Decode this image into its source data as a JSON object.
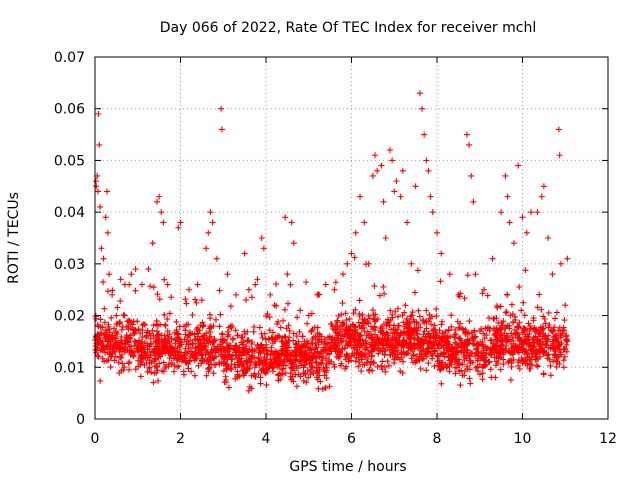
{
  "chart_data": {
    "type": "scatter",
    "title": "Day 066 of 2022, Rate Of TEC Index for receiver mchl",
    "xlabel": "GPS time / hours",
    "ylabel": "ROTI / TECUs",
    "xlim": [
      0,
      12
    ],
    "ylim": [
      0,
      0.07
    ],
    "xticks": [
      0,
      2,
      4,
      6,
      8,
      10,
      12
    ],
    "xtick_labels": [
      "0",
      "2",
      "4",
      "6",
      "8",
      "10",
      "12"
    ],
    "yticks": [
      0,
      0.01,
      0.02,
      0.03,
      0.04,
      0.05,
      0.06,
      0.07
    ],
    "ytick_labels": [
      "0",
      "0.01",
      "0.02",
      "0.03",
      "0.04",
      "0.05",
      "0.06",
      "0.07"
    ],
    "grid": true,
    "marker": "+",
    "color": "#ff0000",
    "series": [
      {
        "name": "ROTI",
        "points": [
          [
            0.02,
            0.046
          ],
          [
            0.03,
            0.045
          ],
          [
            0.05,
            0.047
          ],
          [
            0.07,
            0.044
          ],
          [
            0.08,
            0.059
          ],
          [
            0.1,
            0.053
          ],
          [
            0.12,
            0.041
          ],
          [
            0.15,
            0.033
          ],
          [
            0.2,
            0.031
          ],
          [
            0.25,
            0.039
          ],
          [
            0.28,
            0.044
          ],
          [
            0.3,
            0.036
          ],
          [
            0.33,
            0.028
          ],
          [
            0.4,
            0.024
          ],
          [
            0.5,
            0.02
          ],
          [
            0.6,
            0.027
          ],
          [
            0.7,
            0.026
          ],
          [
            0.8,
            0.026
          ],
          [
            0.85,
            0.028
          ],
          [
            0.95,
            0.029
          ],
          [
            1.1,
            0.026
          ],
          [
            1.25,
            0.029
          ],
          [
            1.35,
            0.034
          ],
          [
            1.45,
            0.042
          ],
          [
            1.5,
            0.043
          ],
          [
            1.55,
            0.04
          ],
          [
            1.6,
            0.038
          ],
          [
            1.7,
            0.026
          ],
          [
            1.95,
            0.037
          ],
          [
            2.0,
            0.038
          ],
          [
            2.2,
            0.025
          ],
          [
            2.4,
            0.026
          ],
          [
            2.6,
            0.033
          ],
          [
            2.65,
            0.036
          ],
          [
            2.7,
            0.04
          ],
          [
            2.75,
            0.038
          ],
          [
            2.85,
            0.031
          ],
          [
            2.95,
            0.06
          ],
          [
            2.97,
            0.056
          ],
          [
            3.1,
            0.028
          ],
          [
            3.3,
            0.024
          ],
          [
            3.5,
            0.032
          ],
          [
            3.6,
            0.025
          ],
          [
            3.75,
            0.026
          ],
          [
            3.8,
            0.027
          ],
          [
            3.9,
            0.035
          ],
          [
            3.95,
            0.033
          ],
          [
            4.1,
            0.024
          ],
          [
            4.2,
            0.022
          ],
          [
            4.45,
            0.039
          ],
          [
            4.6,
            0.038
          ],
          [
            4.65,
            0.034
          ],
          [
            4.5,
            0.028
          ],
          [
            4.4,
            0.019
          ],
          [
            4.8,
            0.021
          ],
          [
            5.0,
            0.02
          ],
          [
            5.2,
            0.024
          ],
          [
            5.4,
            0.026
          ],
          [
            5.6,
            0.025
          ],
          [
            5.8,
            0.028
          ],
          [
            5.9,
            0.03
          ],
          [
            6.0,
            0.032
          ],
          [
            6.1,
            0.036
          ],
          [
            6.2,
            0.043
          ],
          [
            6.3,
            0.038
          ],
          [
            6.4,
            0.03
          ],
          [
            6.5,
            0.047
          ],
          [
            6.55,
            0.051
          ],
          [
            6.6,
            0.048
          ],
          [
            6.7,
            0.049
          ],
          [
            6.75,
            0.042
          ],
          [
            6.8,
            0.035
          ],
          [
            6.9,
            0.052
          ],
          [
            6.95,
            0.05
          ],
          [
            7.0,
            0.044
          ],
          [
            7.05,
            0.046
          ],
          [
            7.15,
            0.043
          ],
          [
            7.2,
            0.048
          ],
          [
            7.3,
            0.038
          ],
          [
            7.4,
            0.03
          ],
          [
            7.5,
            0.045
          ],
          [
            7.6,
            0.063
          ],
          [
            7.65,
            0.06
          ],
          [
            7.7,
            0.055
          ],
          [
            7.75,
            0.05
          ],
          [
            7.8,
            0.048
          ],
          [
            7.85,
            0.043
          ],
          [
            7.9,
            0.04
          ],
          [
            8.0,
            0.036
          ],
          [
            8.1,
            0.032
          ],
          [
            8.3,
            0.028
          ],
          [
            8.5,
            0.024
          ],
          [
            8.7,
            0.055
          ],
          [
            8.75,
            0.053
          ],
          [
            8.8,
            0.047
          ],
          [
            8.85,
            0.042
          ],
          [
            8.9,
            0.028
          ],
          [
            9.1,
            0.025
          ],
          [
            9.3,
            0.031
          ],
          [
            9.5,
            0.04
          ],
          [
            9.6,
            0.047
          ],
          [
            9.65,
            0.043
          ],
          [
            9.7,
            0.038
          ],
          [
            9.8,
            0.034
          ],
          [
            9.9,
            0.049
          ],
          [
            10.0,
            0.039
          ],
          [
            10.1,
            0.036
          ],
          [
            10.2,
            0.04
          ],
          [
            10.35,
            0.04
          ],
          [
            10.45,
            0.043
          ],
          [
            10.5,
            0.045
          ],
          [
            10.6,
            0.035
          ],
          [
            10.7,
            0.028
          ],
          [
            10.85,
            0.056
          ],
          [
            10.87,
            0.051
          ],
          [
            10.9,
            0.03
          ],
          [
            11.0,
            0.022
          ],
          [
            11.05,
            0.031
          ]
        ]
      }
    ]
  }
}
